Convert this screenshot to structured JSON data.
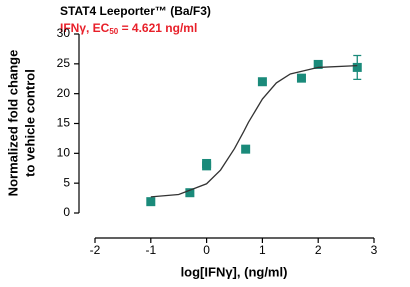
{
  "chart_data": {
    "type": "scatter",
    "title": "STAT4 Leeporter™ (Ba/F3)",
    "subtitle": [
      "IFNγ, EC",
      "50",
      " = 4.621 ng/ml"
    ],
    "subtitle_color": "#e8202a",
    "y_label": [
      "Normalized fold change",
      "to vehicle control"
    ],
    "x_label": "log[IFNγ], (ng/ml)",
    "xlim": [
      -2,
      3
    ],
    "xticks": [
      -2,
      -1,
      0,
      1,
      2,
      3
    ],
    "ylim": [
      0,
      30
    ],
    "yticks": [
      0,
      5,
      10,
      15,
      20,
      25,
      30
    ],
    "series": [
      {
        "color": "#1a8a7a",
        "marker": "square",
        "x": [
          -1,
          -0.3,
          0,
          0,
          0.7,
          1,
          1.7,
          2,
          2.7
        ],
        "values": [
          1.9,
          3.4,
          8.3,
          7.9,
          10.7,
          22,
          22.6,
          24.9,
          24.4
        ],
        "errors": [
          null,
          null,
          null,
          null,
          null,
          null,
          null,
          null,
          2.0
        ]
      },
      {
        "color": "#333333",
        "line": true,
        "x": [
          -1,
          -0.5,
          0,
          0.25,
          0.5,
          0.665,
          0.75,
          1,
          1.25,
          1.5,
          2,
          2.7
        ],
        "values": [
          2.7,
          3.1,
          4.9,
          7.2,
          10.8,
          13.65,
          15.2,
          19.1,
          21.8,
          23.3,
          24.4,
          24.7
        ]
      }
    ]
  }
}
